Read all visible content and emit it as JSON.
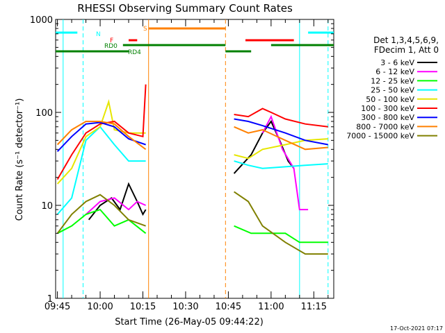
{
  "chart_data": {
    "type": "line",
    "title": "RHESSI Observing Summary Count Rates",
    "xlabel": "Start Time (26-May-05 09:44:22)",
    "ylabel": "Count Rate (s⁻¹ detector⁻¹)",
    "yscale": "log",
    "ylim": [
      1,
      1000
    ],
    "xlim": [
      "09:44:22",
      "11:22:00"
    ],
    "x_ticks": [
      "09:45",
      "10:00",
      "10:15",
      "10:30",
      "10:45",
      "11:00",
      "11:15"
    ],
    "y_ticks": [
      "1",
      "10",
      "100",
      "1000"
    ],
    "timestamp": "17-Oct-2021 07:17",
    "legend_header": [
      "Det 1,3,4,5,6,9,",
      "FDecim 1, Att 0"
    ],
    "series": [
      {
        "name": "3 - 6 keV",
        "color": "#000000",
        "x": [
          "09:45",
          "09:53",
          "09:56",
          "10:00",
          "10:04",
          "10:07",
          "10:10",
          "10:13",
          "10:15",
          "10:16"
        ],
        "y": [
          null,
          null,
          7,
          10,
          12,
          9,
          17,
          11,
          8,
          9
        ]
      },
      {
        "name": "6 - 12 keV",
        "color": "#ff00ff",
        "x": [
          "09:45",
          "09:50",
          "09:55",
          "10:00",
          "10:05",
          "10:10",
          "10:13",
          "10:16"
        ],
        "y": [
          null,
          null,
          8,
          11,
          12,
          9,
          11,
          10
        ]
      },
      {
        "name": "12 - 25 keV",
        "color": "#00ff00",
        "x": [
          "09:45",
          "09:50",
          "09:55",
          "10:00",
          "10:05",
          "10:10",
          "10:16"
        ],
        "y": [
          5,
          6,
          8,
          9,
          6,
          7,
          5
        ]
      },
      {
        "name": "25 - 50 keV",
        "color": "#00ffff",
        "x": [
          "09:45",
          "09:50",
          "09:55",
          "10:00",
          "10:05",
          "10:10",
          "10:16"
        ],
        "y": [
          8,
          12,
          50,
          70,
          45,
          30,
          30
        ]
      },
      {
        "name": "50 - 100 keV",
        "color": "#e6e600",
        "x": [
          "09:45",
          "09:50",
          "09:55",
          "10:00",
          "10:03",
          "10:05",
          "10:10",
          "10:16"
        ],
        "y": [
          17,
          25,
          55,
          70,
          130,
          65,
          60,
          60
        ]
      },
      {
        "name": "100 - 300 keV",
        "color": "#ff0000",
        "x": [
          "09:45",
          "09:50",
          "09:55",
          "10:00",
          "10:05",
          "10:10",
          "10:15",
          "10:16"
        ],
        "y": [
          19,
          35,
          60,
          75,
          80,
          60,
          55,
          200
        ]
      },
      {
        "name": "300 - 800 keV",
        "color": "#0000ff",
        "x": [
          "09:45",
          "09:50",
          "09:55",
          "10:00",
          "10:05",
          "10:10",
          "10:16"
        ],
        "y": [
          38,
          55,
          75,
          78,
          70,
          52,
          45
        ]
      },
      {
        "name": "800 - 7000 keV",
        "color": "#ff8000",
        "x": [
          "09:45",
          "09:50",
          "09:55",
          "10:00",
          "10:05",
          "10:10",
          "10:16"
        ],
        "y": [
          45,
          65,
          80,
          80,
          75,
          55,
          40
        ]
      },
      {
        "name": "7000 - 15000 keV",
        "color": "#808000",
        "x": [
          "09:45",
          "09:50",
          "09:55",
          "10:00",
          "10:05",
          "10:10",
          "10:16"
        ],
        "y": [
          5,
          8,
          11,
          13,
          10,
          7,
          6
        ]
      }
    ],
    "series_after_gap": [
      {
        "name": "3 - 6 keV",
        "x": [
          "10:47",
          "10:53",
          "10:57",
          "11:00",
          "11:03",
          "11:06",
          "11:08"
        ],
        "y": [
          22,
          35,
          60,
          80,
          50,
          30,
          25
        ]
      },
      {
        "name": "6 - 12 keV",
        "x": [
          "10:47",
          "10:53",
          "10:57",
          "11:00",
          "11:04",
          "11:08",
          "11:10",
          "11:13"
        ],
        "y": [
          null,
          null,
          60,
          90,
          40,
          25,
          9,
          9
        ]
      },
      {
        "name": "12 - 25 keV",
        "x": [
          "10:47",
          "10:53",
          "10:57",
          "11:05",
          "11:10",
          "11:20"
        ],
        "y": [
          6,
          5,
          5,
          5,
          4,
          4
        ]
      },
      {
        "name": "25 - 50 keV",
        "x": [
          "10:47",
          "10:52",
          "10:57",
          "11:05",
          "11:12",
          "11:20"
        ],
        "y": [
          30,
          27,
          25,
          26,
          27,
          28
        ]
      },
      {
        "name": "50 - 100 keV",
        "x": [
          "10:47",
          "10:52",
          "10:57",
          "11:05",
          "11:12",
          "11:20"
        ],
        "y": [
          35,
          32,
          40,
          45,
          50,
          52
        ]
      },
      {
        "name": "100 - 300 keV",
        "x": [
          "10:47",
          "10:52",
          "10:57",
          "11:00",
          "11:05",
          "11:12",
          "11:20"
        ],
        "y": [
          95,
          90,
          110,
          100,
          85,
          75,
          70
        ]
      },
      {
        "name": "300 - 800 keV",
        "x": [
          "10:47",
          "10:52",
          "10:57",
          "11:05",
          "11:12",
          "11:20"
        ],
        "y": [
          85,
          80,
          72,
          60,
          50,
          45
        ]
      },
      {
        "name": "800 - 7000 keV",
        "x": [
          "10:47",
          "10:52",
          "10:57",
          "11:05",
          "11:12",
          "11:20"
        ],
        "y": [
          70,
          60,
          65,
          50,
          40,
          42
        ]
      },
      {
        "name": "7000 - 15000 keV",
        "x": [
          "10:47",
          "10:52",
          "10:57",
          "11:05",
          "11:12",
          "11:20"
        ],
        "y": [
          14,
          11,
          6,
          4,
          3,
          3
        ]
      }
    ],
    "state_bars": [
      {
        "label": "N",
        "color": "#00ffff",
        "segments": [
          [
            "09:44:22",
            "09:52"
          ],
          [
            "11:13",
            "11:22"
          ]
        ]
      },
      {
        "label": "F",
        "color": "#ff0000",
        "segments": [
          [
            "10:10",
            "10:13"
          ],
          [
            "10:51",
            "11:08"
          ]
        ]
      },
      {
        "label": "S",
        "color": "#ff8000",
        "segments": [
          [
            "10:17",
            "10:44"
          ]
        ]
      },
      {
        "label": "RD0",
        "color": "#008000",
        "segments": [
          [
            "10:08",
            "10:44"
          ],
          [
            "11:00",
            "11:22"
          ]
        ]
      },
      {
        "label": "RD4",
        "color": "#008000",
        "segments": [
          [
            "09:44:22",
            "10:10"
          ],
          [
            "10:44",
            "10:53"
          ]
        ]
      }
    ],
    "markers": [
      {
        "time": "09:47",
        "color": "#00ffff",
        "style": "solid"
      },
      {
        "time": "09:54",
        "color": "#00ffff",
        "style": "dashed"
      },
      {
        "time": "10:17",
        "color": "#ff8000",
        "style": "solid"
      },
      {
        "time": "10:44",
        "color": "#ff8000",
        "style": "dashed"
      },
      {
        "time": "11:10",
        "color": "#00ffff",
        "style": "solid"
      },
      {
        "time": "11:20",
        "color": "#00ffff",
        "style": "dashed"
      }
    ]
  }
}
